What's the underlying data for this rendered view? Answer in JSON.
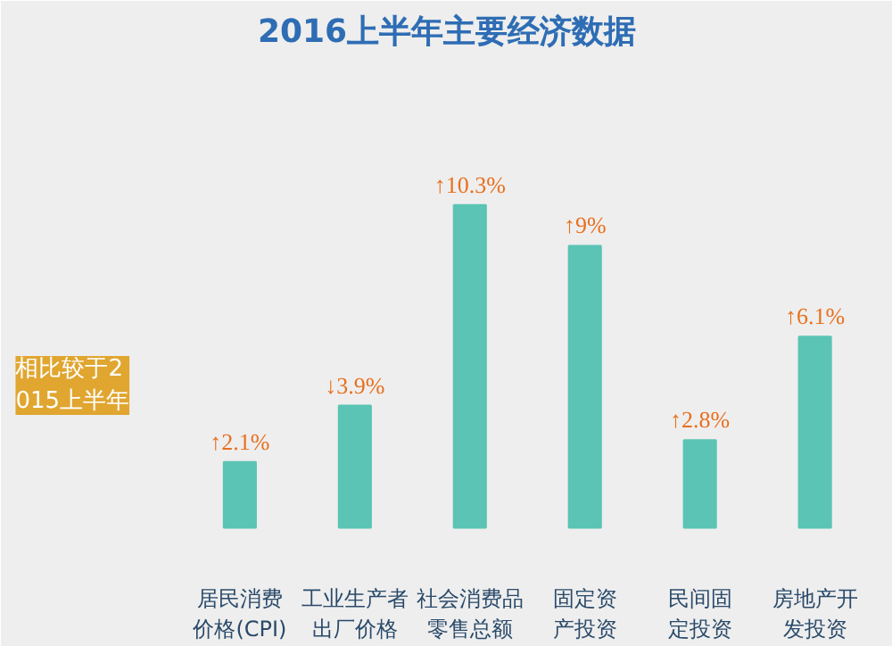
{
  "chart_data": {
    "type": "bar",
    "title": "2016上半年主要经济数据",
    "categories": [
      "居民消费价格(CPI)",
      "工业生产者出厂价格",
      "社会消费品零售总额",
      "固定资产投资",
      "民间固定投资",
      "房地产开发投资"
    ],
    "series": [
      {
        "color": "#5bc4b4",
        "values": [
          2.1,
          3.9,
          10.3,
          9,
          2.8,
          6.1
        ],
        "value_labels": [
          "↑2.1%",
          "↓3.9%",
          "↑10.3%",
          "↑9%",
          "↑2.8%",
          "↑6.1%"
        ]
      }
    ],
    "annotations": [
      "相比较于2015上半年"
    ],
    "grid": false
  }
}
